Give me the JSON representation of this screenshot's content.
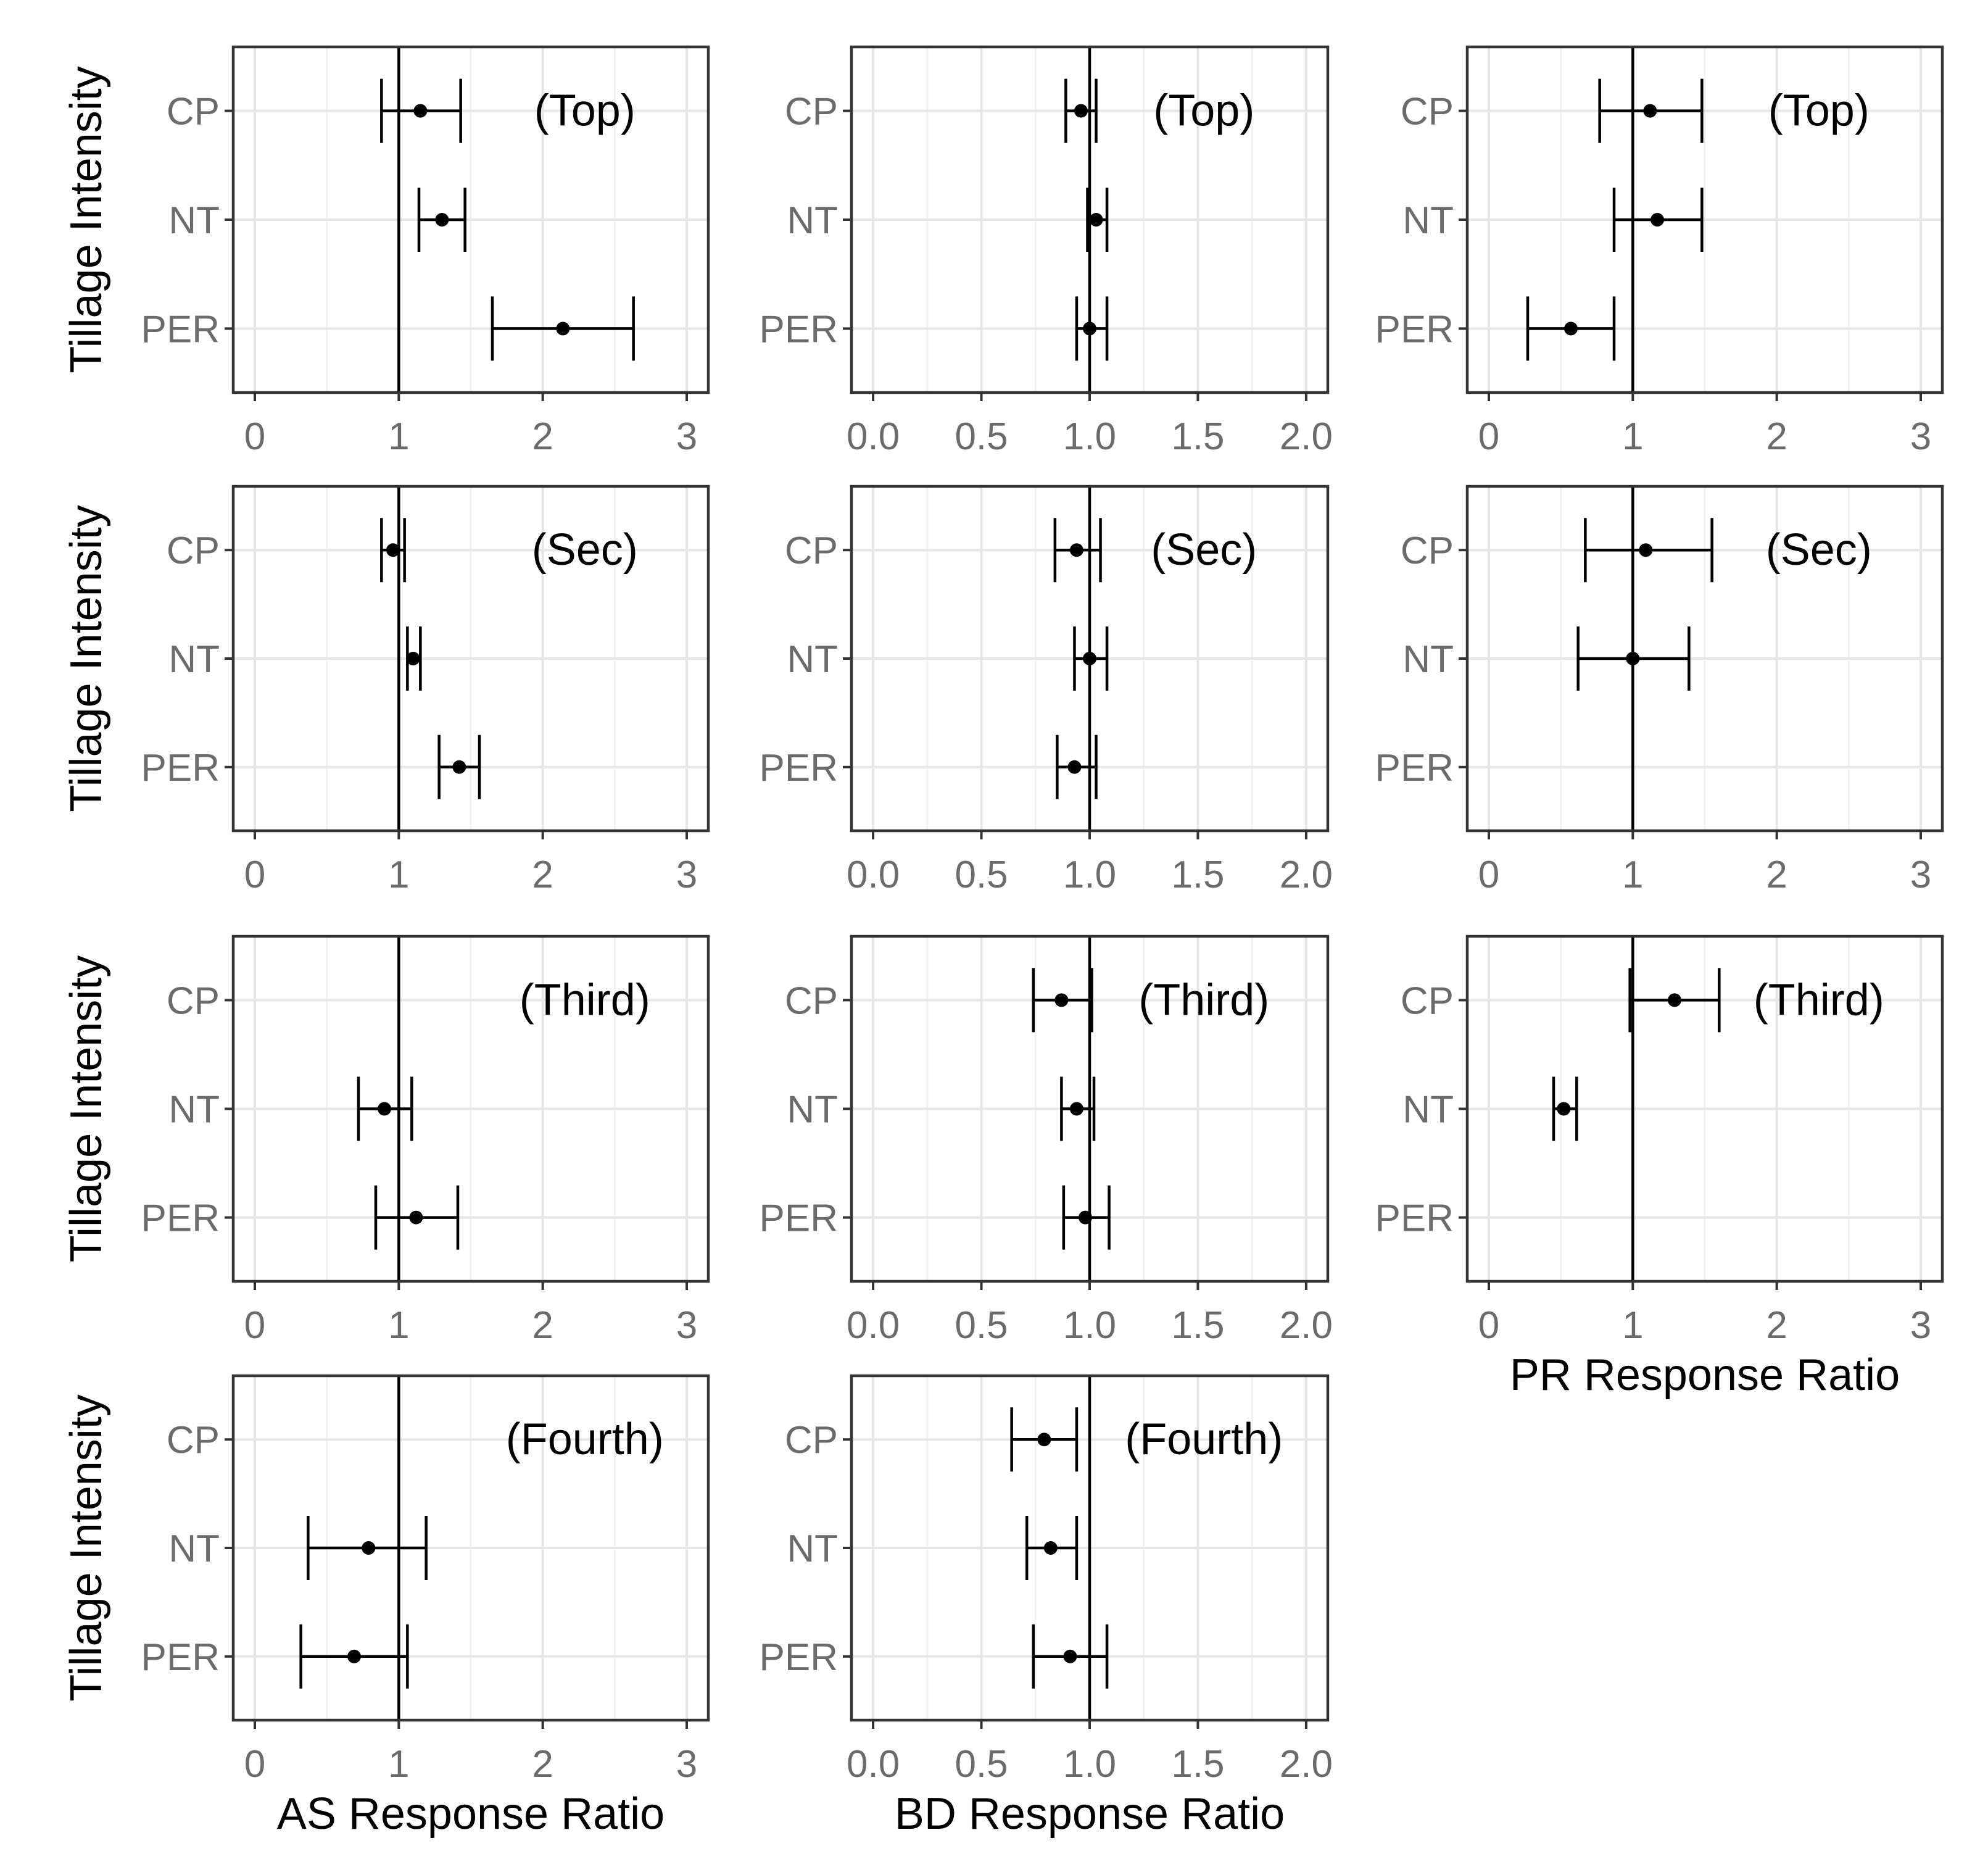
{
  "chart_data": {
    "type": "forest",
    "ylabel": "Tillage Intensity",
    "categories": [
      "CP",
      "NT",
      "PER"
    ],
    "reference_line": 1,
    "columns": [
      {
        "key": "AS",
        "xlabel": "AS Response Ratio",
        "xlim": [
          -0.15,
          3.15
        ],
        "ticks": [
          0,
          1,
          2,
          3
        ],
        "tick_labels": [
          "0",
          "1",
          "2",
          "3"
        ]
      },
      {
        "key": "BD",
        "xlabel": "BD Response Ratio",
        "xlim": [
          -0.1,
          2.1
        ],
        "ticks": [
          0,
          0.5,
          1,
          1.5,
          2
        ],
        "tick_labels": [
          "0.0",
          "0.5",
          "1.0",
          "1.5",
          "2.0"
        ]
      },
      {
        "key": "PR",
        "xlabel": "PR Response Ratio",
        "xlim": [
          -0.15,
          3.15
        ],
        "ticks": [
          0,
          1,
          2,
          3
        ],
        "tick_labels": [
          "0",
          "1",
          "2",
          "3"
        ]
      }
    ],
    "panels": [
      {
        "col": 0,
        "row": 0,
        "label": "(Top)",
        "points": [
          {
            "category": "CP",
            "mean": 1.15,
            "lower": 0.88,
            "upper": 1.43
          },
          {
            "category": "NT",
            "mean": 1.3,
            "lower": 1.14,
            "upper": 1.46
          },
          {
            "category": "PER",
            "mean": 2.14,
            "lower": 1.65,
            "upper": 2.63
          }
        ]
      },
      {
        "col": 1,
        "row": 0,
        "label": "(Top)",
        "points": [
          {
            "category": "CP",
            "mean": 0.96,
            "lower": 0.89,
            "upper": 1.03
          },
          {
            "category": "NT",
            "mean": 1.03,
            "lower": 0.99,
            "upper": 1.08
          },
          {
            "category": "PER",
            "mean": 1.0,
            "lower": 0.94,
            "upper": 1.08
          }
        ]
      },
      {
        "col": 2,
        "row": 0,
        "label": "(Top)",
        "points": [
          {
            "category": "CP",
            "mean": 1.12,
            "lower": 0.77,
            "upper": 1.48
          },
          {
            "category": "NT",
            "mean": 1.17,
            "lower": 0.87,
            "upper": 1.48
          },
          {
            "category": "PER",
            "mean": 0.57,
            "lower": 0.27,
            "upper": 0.87
          }
        ]
      },
      {
        "col": 0,
        "row": 1,
        "label": "(Sec)",
        "points": [
          {
            "category": "CP",
            "mean": 0.96,
            "lower": 0.88,
            "upper": 1.04
          },
          {
            "category": "NT",
            "mean": 1.1,
            "lower": 1.06,
            "upper": 1.15
          },
          {
            "category": "PER",
            "mean": 1.42,
            "lower": 1.28,
            "upper": 1.56
          }
        ]
      },
      {
        "col": 1,
        "row": 1,
        "label": "(Sec)",
        "points": [
          {
            "category": "CP",
            "mean": 0.94,
            "lower": 0.84,
            "upper": 1.05
          },
          {
            "category": "NT",
            "mean": 1.0,
            "lower": 0.93,
            "upper": 1.08
          },
          {
            "category": "PER",
            "mean": 0.93,
            "lower": 0.85,
            "upper": 1.03
          }
        ]
      },
      {
        "col": 2,
        "row": 1,
        "label": "(Sec)",
        "points": [
          {
            "category": "CP",
            "mean": 1.09,
            "lower": 0.67,
            "upper": 1.55
          },
          {
            "category": "NT",
            "mean": 1.0,
            "lower": 0.62,
            "upper": 1.39
          }
        ]
      },
      {
        "col": 0,
        "row": 2,
        "label": "(Third)",
        "points": [
          {
            "category": "NT",
            "mean": 0.9,
            "lower": 0.72,
            "upper": 1.09
          },
          {
            "category": "PER",
            "mean": 1.12,
            "lower": 0.84,
            "upper": 1.41
          }
        ]
      },
      {
        "col": 1,
        "row": 2,
        "label": "(Third)",
        "points": [
          {
            "category": "CP",
            "mean": 0.87,
            "lower": 0.74,
            "upper": 1.01
          },
          {
            "category": "NT",
            "mean": 0.94,
            "lower": 0.87,
            "upper": 1.02
          },
          {
            "category": "PER",
            "mean": 0.98,
            "lower": 0.88,
            "upper": 1.09
          }
        ]
      },
      {
        "col": 2,
        "row": 2,
        "label": "(Third)",
        "points": [
          {
            "category": "CP",
            "mean": 1.29,
            "lower": 0.98,
            "upper": 1.6
          },
          {
            "category": "NT",
            "mean": 0.52,
            "lower": 0.45,
            "upper": 0.61
          }
        ]
      },
      {
        "col": 0,
        "row": 3,
        "label": "(Fourth)",
        "points": [
          {
            "category": "NT",
            "mean": 0.79,
            "lower": 0.37,
            "upper": 1.19
          },
          {
            "category": "PER",
            "mean": 0.69,
            "lower": 0.32,
            "upper": 1.06
          }
        ]
      },
      {
        "col": 1,
        "row": 3,
        "label": "(Fourth)",
        "points": [
          {
            "category": "CP",
            "mean": 0.79,
            "lower": 0.64,
            "upper": 0.94
          },
          {
            "category": "NT",
            "mean": 0.82,
            "lower": 0.71,
            "upper": 0.94
          },
          {
            "category": "PER",
            "mean": 0.91,
            "lower": 0.74,
            "upper": 1.08
          }
        ]
      }
    ]
  }
}
